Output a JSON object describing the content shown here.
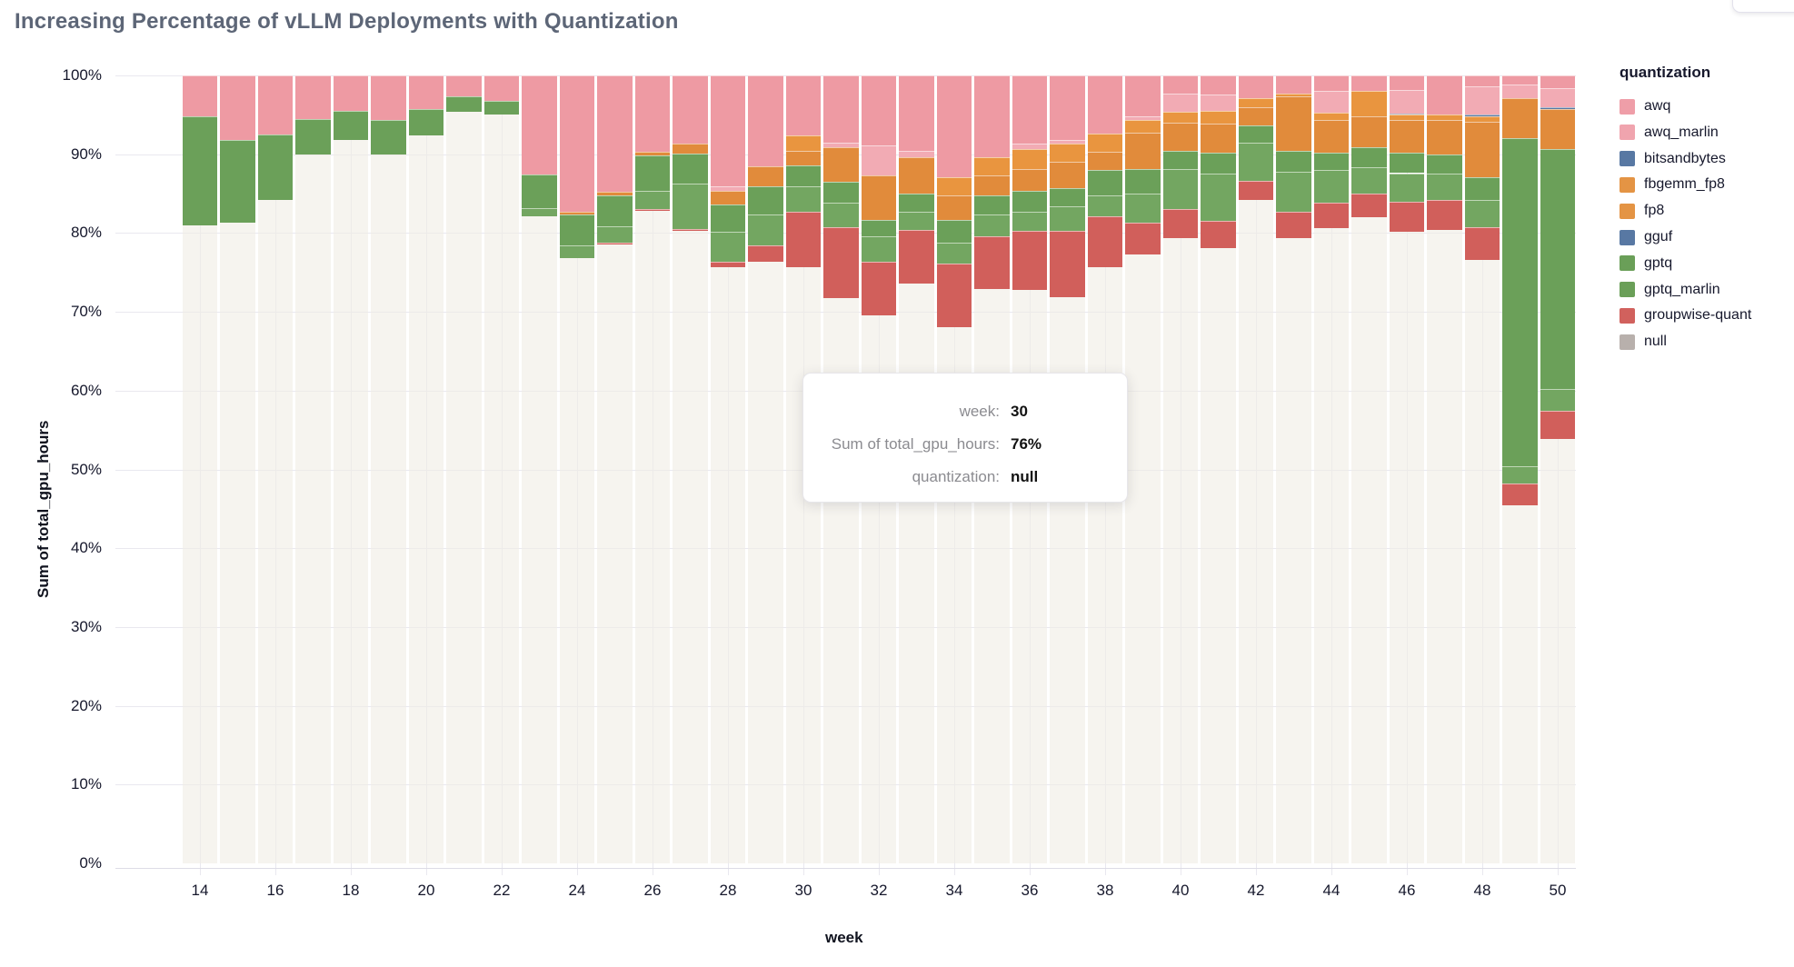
{
  "page": {
    "title": "Increasing Percentage of vLLM Deployments with Quantization"
  },
  "chart_data": {
    "type": "bar",
    "subtype": "normalized_stacked_bar_100pct",
    "title": "Increasing Percentage of vLLM Deployments with Quantization",
    "xlabel": "week",
    "ylabel": "Sum of total_gpu_hours",
    "ylim": [
      0,
      100
    ],
    "grid": true,
    "legend_position": "right",
    "x_tick_weeks": [
      14,
      16,
      18,
      20,
      22,
      24,
      26,
      28,
      30,
      32,
      34,
      36,
      38,
      40,
      42,
      44,
      46,
      48,
      50
    ],
    "y_tick_labels": [
      "0%",
      "10%",
      "20%",
      "30%",
      "40%",
      "50%",
      "60%",
      "70%",
      "80%",
      "90%",
      "100%"
    ],
    "stack_order_bottom_to_top": [
      "null",
      "groupwise-quant",
      "gptq_marlin",
      "gptq",
      "gguf",
      "fp8",
      "fbgemm_fp8",
      "bitsandbytes",
      "awq_marlin",
      "awq"
    ],
    "series_colors": {
      "awq": "#ee9aa3",
      "awq_marlin": "#f2abb4",
      "bitsandbytes": "#5878a3",
      "fbgemm_fp8": "#e9953f",
      "fp8": "#e18b3b",
      "gguf": "#5878a3",
      "gptq": "#6ba059",
      "gptq_marlin": "#73a661",
      "groupwise-quant": "#d15f5b",
      "null": "rgba(240,236,229,0.6)"
    },
    "weeks": [
      {
        "week": 14,
        "segments": [
          [
            "null",
            81.0
          ],
          [
            "gptq",
            13.8
          ],
          [
            "awq",
            5.2
          ]
        ]
      },
      {
        "week": 15,
        "segments": [
          [
            "null",
            81.3
          ],
          [
            "gptq",
            10.5
          ],
          [
            "awq",
            8.2
          ]
        ]
      },
      {
        "week": 16,
        "segments": [
          [
            "null",
            84.2
          ],
          [
            "gptq",
            8.3
          ],
          [
            "awq",
            7.5
          ]
        ]
      },
      {
        "week": 17,
        "segments": [
          [
            "null",
            90.0
          ],
          [
            "gptq",
            4.5
          ],
          [
            "awq",
            5.5
          ]
        ]
      },
      {
        "week": 18,
        "segments": [
          [
            "null",
            91.8
          ],
          [
            "gptq",
            3.7
          ],
          [
            "awq",
            4.5
          ]
        ]
      },
      {
        "week": 19,
        "segments": [
          [
            "null",
            90.0
          ],
          [
            "gptq",
            4.4
          ],
          [
            "awq",
            5.6
          ]
        ]
      },
      {
        "week": 20,
        "segments": [
          [
            "null",
            92.4
          ],
          [
            "gptq",
            3.3
          ],
          [
            "awq",
            4.3
          ]
        ]
      },
      {
        "week": 21,
        "segments": [
          [
            "null",
            95.4
          ],
          [
            "gptq",
            1.9
          ],
          [
            "awq",
            2.7
          ]
        ]
      },
      {
        "week": 22,
        "segments": [
          [
            "null",
            95.0
          ],
          [
            "gptq",
            1.8
          ],
          [
            "awq",
            3.2
          ]
        ]
      },
      {
        "week": 23,
        "segments": [
          [
            "null",
            82.1
          ],
          [
            "gptq_marlin",
            1.1
          ],
          [
            "gptq",
            4.2
          ],
          [
            "awq",
            12.6
          ]
        ]
      },
      {
        "week": 24,
        "segments": [
          [
            "null",
            76.8
          ],
          [
            "gptq_marlin",
            1.6
          ],
          [
            "gptq",
            4.0
          ],
          [
            "fp8",
            0.3
          ],
          [
            "awq",
            17.3
          ]
        ]
      },
      {
        "week": 25,
        "segments": [
          [
            "null",
            78.5
          ],
          [
            "groupwise-quant",
            0.3
          ],
          [
            "gptq_marlin",
            2.1
          ],
          [
            "gptq",
            3.9
          ],
          [
            "fp8",
            0.4
          ],
          [
            "awq",
            14.8
          ]
        ]
      },
      {
        "week": 26,
        "segments": [
          [
            "null",
            82.8
          ],
          [
            "groupwise-quant",
            0.2
          ],
          [
            "gptq_marlin",
            2.4
          ],
          [
            "gptq",
            4.5
          ],
          [
            "fp8",
            0.4
          ],
          [
            "awq",
            9.7
          ]
        ]
      },
      {
        "week": 27,
        "segments": [
          [
            "null",
            80.3
          ],
          [
            "groupwise-quant",
            0.2
          ],
          [
            "gptq_marlin",
            5.8
          ],
          [
            "gptq",
            3.8
          ],
          [
            "fp8",
            1.3
          ],
          [
            "awq",
            8.6
          ]
        ]
      },
      {
        "week": 28,
        "segments": [
          [
            "null",
            75.7
          ],
          [
            "groupwise-quant",
            0.6
          ],
          [
            "gptq_marlin",
            3.9
          ],
          [
            "gptq",
            3.4
          ],
          [
            "fp8",
            1.7
          ],
          [
            "awq_marlin",
            0.6
          ],
          [
            "awq",
            14.1
          ]
        ]
      },
      {
        "week": 29,
        "segments": [
          [
            "null",
            76.4
          ],
          [
            "groupwise-quant",
            2.0
          ],
          [
            "gptq_marlin",
            3.9
          ],
          [
            "gptq",
            3.6
          ],
          [
            "fp8",
            2.6
          ],
          [
            "awq",
            11.5
          ]
        ]
      },
      {
        "week": 30,
        "segments": [
          [
            "null",
            75.7
          ],
          [
            "groupwise-quant",
            7.0
          ],
          [
            "gptq_marlin",
            3.2
          ],
          [
            "gptq",
            2.7
          ],
          [
            "fp8",
            1.8
          ],
          [
            "fbgemm_fp8",
            2.0
          ],
          [
            "awq",
            7.6
          ]
        ]
      },
      {
        "week": 31,
        "segments": [
          [
            "null",
            71.7
          ],
          [
            "groupwise-quant",
            9.0
          ],
          [
            "gptq_marlin",
            3.1
          ],
          [
            "gptq",
            2.7
          ],
          [
            "fp8",
            4.4
          ],
          [
            "awq_marlin",
            0.6
          ],
          [
            "awq",
            8.5
          ]
        ]
      },
      {
        "week": 32,
        "segments": [
          [
            "null",
            69.5
          ],
          [
            "groupwise-quant",
            6.8
          ],
          [
            "gptq_marlin",
            3.3
          ],
          [
            "gptq",
            2.1
          ],
          [
            "fp8",
            5.6
          ],
          [
            "awq_marlin",
            3.8
          ],
          [
            "awq",
            8.9
          ]
        ]
      },
      {
        "week": 33,
        "segments": [
          [
            "null",
            73.6
          ],
          [
            "groupwise-quant",
            6.8
          ],
          [
            "gptq_marlin",
            2.3
          ],
          [
            "gptq",
            2.3
          ],
          [
            "fp8",
            4.6
          ],
          [
            "awq_marlin",
            0.8
          ],
          [
            "awq",
            9.6
          ]
        ]
      },
      {
        "week": 34,
        "segments": [
          [
            "null",
            68.1
          ],
          [
            "groupwise-quant",
            8.0
          ],
          [
            "gptq_marlin",
            2.7
          ],
          [
            "gptq",
            2.9
          ],
          [
            "fp8",
            3.1
          ],
          [
            "fbgemm_fp8",
            2.3
          ],
          [
            "awq",
            12.9
          ]
        ]
      },
      {
        "week": 35,
        "segments": [
          [
            "null",
            72.9
          ],
          [
            "groupwise-quant",
            6.7
          ],
          [
            "gptq_marlin",
            2.7
          ],
          [
            "gptq",
            2.5
          ],
          [
            "fp8",
            2.5
          ],
          [
            "fbgemm_fp8",
            2.3
          ],
          [
            "awq",
            10.4
          ]
        ]
      },
      {
        "week": 36,
        "segments": [
          [
            "null",
            72.8
          ],
          [
            "groupwise-quant",
            7.5
          ],
          [
            "gptq_marlin",
            2.4
          ],
          [
            "gptq",
            2.6
          ],
          [
            "fp8",
            2.8
          ],
          [
            "fbgemm_fp8",
            2.6
          ],
          [
            "awq_marlin",
            0.6
          ],
          [
            "awq",
            8.7
          ]
        ]
      },
      {
        "week": 37,
        "segments": [
          [
            "null",
            71.8
          ],
          [
            "groupwise-quant",
            8.5
          ],
          [
            "gptq_marlin",
            3.1
          ],
          [
            "gptq",
            2.3
          ],
          [
            "fp8",
            3.3
          ],
          [
            "fbgemm_fp8",
            2.3
          ],
          [
            "awq_marlin",
            0.5
          ],
          [
            "awq",
            8.2
          ]
        ]
      },
      {
        "week": 38,
        "segments": [
          [
            "null",
            75.7
          ],
          [
            "groupwise-quant",
            6.4
          ],
          [
            "gptq_marlin",
            2.7
          ],
          [
            "gptq",
            3.2
          ],
          [
            "fp8",
            2.3
          ],
          [
            "fbgemm_fp8",
            2.3
          ],
          [
            "awq",
            7.4
          ]
        ]
      },
      {
        "week": 39,
        "segments": [
          [
            "null",
            77.3
          ],
          [
            "groupwise-quant",
            4.0
          ],
          [
            "gptq_marlin",
            3.7
          ],
          [
            "gptq",
            3.1
          ],
          [
            "fp8",
            4.6
          ],
          [
            "fbgemm_fp8",
            1.6
          ],
          [
            "awq_marlin",
            0.5
          ],
          [
            "awq",
            5.2
          ]
        ]
      },
      {
        "week": 40,
        "segments": [
          [
            "null",
            79.3
          ],
          [
            "groupwise-quant",
            3.7
          ],
          [
            "gptq_marlin",
            5.1
          ],
          [
            "gptq",
            2.3
          ],
          [
            "fp8",
            3.6
          ],
          [
            "fbgemm_fp8",
            1.4
          ],
          [
            "awq_marlin",
            2.3
          ],
          [
            "awq",
            2.3
          ]
        ]
      },
      {
        "week": 41,
        "segments": [
          [
            "null",
            78.1
          ],
          [
            "groupwise-quant",
            3.5
          ],
          [
            "gptq_marlin",
            5.9
          ],
          [
            "gptq",
            2.7
          ],
          [
            "fp8",
            3.7
          ],
          [
            "fbgemm_fp8",
            1.6
          ],
          [
            "awq_marlin",
            2.1
          ],
          [
            "awq",
            2.4
          ]
        ]
      },
      {
        "week": 42,
        "segments": [
          [
            "null",
            84.2
          ],
          [
            "groupwise-quant",
            2.4
          ],
          [
            "gptq_marlin",
            4.9
          ],
          [
            "gptq",
            2.2
          ],
          [
            "fp8",
            2.3
          ],
          [
            "fbgemm_fp8",
            1.1
          ],
          [
            "awq",
            2.9
          ]
        ]
      },
      {
        "week": 43,
        "segments": [
          [
            "null",
            79.3
          ],
          [
            "groupwise-quant",
            3.4
          ],
          [
            "gptq_marlin",
            5.1
          ],
          [
            "gptq",
            2.6
          ],
          [
            "fp8",
            6.9
          ],
          [
            "fbgemm_fp8",
            0.4
          ],
          [
            "awq",
            2.3
          ]
        ]
      },
      {
        "week": 44,
        "segments": [
          [
            "null",
            80.6
          ],
          [
            "groupwise-quant",
            3.3
          ],
          [
            "gptq_marlin",
            4.1
          ],
          [
            "gptq",
            2.2
          ],
          [
            "fp8",
            4.2
          ],
          [
            "fbgemm_fp8",
            0.9
          ],
          [
            "awq_marlin",
            2.7
          ],
          [
            "awq",
            2.0
          ]
        ]
      },
      {
        "week": 45,
        "segments": [
          [
            "null",
            82.0
          ],
          [
            "groupwise-quant",
            3.0
          ],
          [
            "gptq_marlin",
            3.4
          ],
          [
            "gptq",
            2.5
          ],
          [
            "fp8",
            3.9
          ],
          [
            "fbgemm_fp8",
            3.2
          ],
          [
            "awq",
            2.0
          ]
        ]
      },
      {
        "week": 46,
        "segments": [
          [
            "null",
            80.2
          ],
          [
            "groupwise-quant",
            3.8
          ],
          [
            "gptq_marlin",
            3.6
          ],
          [
            "gptq",
            2.6
          ],
          [
            "fp8",
            4.2
          ],
          [
            "fbgemm_fp8",
            0.6
          ],
          [
            "bitsandbytes",
            0.2
          ],
          [
            "awq_marlin",
            2.9
          ],
          [
            "awq",
            1.9
          ]
        ]
      },
      {
        "week": 47,
        "segments": [
          [
            "null",
            80.4
          ],
          [
            "groupwise-quant",
            3.8
          ],
          [
            "gptq_marlin",
            3.3
          ],
          [
            "gptq",
            2.5
          ],
          [
            "fp8",
            4.4
          ],
          [
            "fbgemm_fp8",
            0.6
          ],
          [
            "awq",
            5.0
          ]
        ]
      },
      {
        "week": 48,
        "segments": [
          [
            "null",
            76.6
          ],
          [
            "groupwise-quant",
            4.1
          ],
          [
            "gptq_marlin",
            3.5
          ],
          [
            "gptq",
            2.9
          ],
          [
            "fp8",
            7.0
          ],
          [
            "fbgemm_fp8",
            0.7
          ],
          [
            "bitsandbytes",
            0.2
          ],
          [
            "awq_marlin",
            3.6
          ],
          [
            "awq",
            1.4
          ]
        ]
      },
      {
        "week": 49,
        "segments": [
          [
            "null",
            45.4
          ],
          [
            "groupwise-quant",
            2.8
          ],
          [
            "gptq_marlin",
            2.2
          ],
          [
            "gptq",
            41.6
          ],
          [
            "fp8",
            5.1
          ],
          [
            "awq_marlin",
            1.7
          ],
          [
            "awq",
            1.2
          ]
        ]
      },
      {
        "week": 50,
        "segments": [
          [
            "null",
            53.9
          ],
          [
            "groupwise-quant",
            3.5
          ],
          [
            "gptq_marlin",
            2.8
          ],
          [
            "gptq",
            30.5
          ],
          [
            "fp8",
            5.0
          ],
          [
            "bitsandbytes",
            0.3
          ],
          [
            "awq_marlin",
            2.4
          ],
          [
            "awq",
            1.6
          ]
        ]
      }
    ]
  },
  "legend": {
    "title": "quantization",
    "items": [
      {
        "label": "awq",
        "color": "#ef9ea8"
      },
      {
        "label": "awq_marlin",
        "color": "#f0a4ae"
      },
      {
        "label": "bitsandbytes",
        "color": "#5878a3"
      },
      {
        "label": "fbgemm_fp8",
        "color": "#e49444"
      },
      {
        "label": "fp8",
        "color": "#e49444"
      },
      {
        "label": "gguf",
        "color": "#5878a3"
      },
      {
        "label": "gptq",
        "color": "#6a9f58"
      },
      {
        "label": "gptq_marlin",
        "color": "#6a9f58"
      },
      {
        "label": "groupwise-quant",
        "color": "#d1615d"
      },
      {
        "label": "null",
        "color": "#b8b0ac"
      }
    ]
  },
  "tooltip": {
    "rows": [
      {
        "label": "week:",
        "value": "30"
      },
      {
        "label": "Sum of total_gpu_hours:",
        "value": "76%"
      },
      {
        "label": "quantization:",
        "value": "null"
      }
    ]
  },
  "axes": {
    "x_title": "week",
    "y_title": "Sum of total_gpu_hours"
  }
}
